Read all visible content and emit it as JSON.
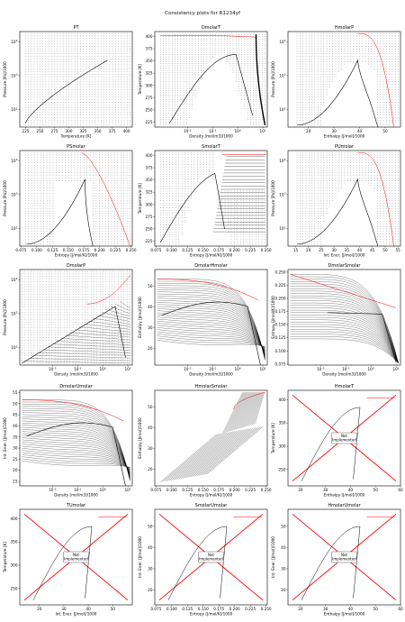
{
  "figure": {
    "title": "Consistency plots for R1234yf"
  },
  "note_label": "Not\nImplemented",
  "colors": {
    "isoline": "#000000",
    "sat": "#000000",
    "phase": "#ff0000",
    "cross": "#ff0000",
    "axis": "#000000",
    "bg": "#ffffff"
  },
  "chart_data": [
    {
      "id": "PT",
      "type": "line",
      "title": "PT",
      "xlabel": "Temperature [K]",
      "ylabel": "Pressure [Pa]/1000",
      "xlim": [
        215,
        410
      ],
      "xticks": [
        "225",
        "250",
        "275",
        "300",
        "325",
        "350",
        "375",
        "400"
      ],
      "ylog": true,
      "ylim": [
        30,
        20000
      ],
      "yticks": [
        "10^2",
        "10^3",
        "10^4"
      ],
      "kind": "pt"
    },
    {
      "id": "DmolarT",
      "type": "line",
      "title": "DmolarT",
      "xlabel": "Density [mol/m3]/1000",
      "ylabel": "Temperature [K]",
      "xlog": true,
      "xlim": [
        0.0005,
        15
      ],
      "xticks": [
        "10^-2",
        "10^-1",
        "10^0",
        "10^1"
      ],
      "ylim": [
        215,
        410
      ],
      "yticks": [
        "225",
        "250",
        "275",
        "300",
        "325",
        "350",
        "375",
        "400"
      ],
      "kind": "dt"
    },
    {
      "id": "HmolarP",
      "type": "line",
      "title": "HmolarP",
      "xlabel": "Enthalpy [J/mol]/1000",
      "ylabel": "Pressure [Pa]/1000",
      "xlim": [
        12,
        56
      ],
      "xticks": [
        "20",
        "30",
        "40",
        "50"
      ],
      "ylog": true,
      "ylim": [
        30,
        20000
      ],
      "yticks": [
        "10^2",
        "10^3",
        "10^4"
      ],
      "kind": "hp"
    },
    {
      "id": "PSmolar",
      "type": "line",
      "title": "PSmolar",
      "xlabel": "Entropy [J/mol/K]/1000",
      "ylabel": "Pressure [Pa]/1000",
      "xlim": [
        0.073,
        0.252
      ],
      "xticks": [
        "0.075",
        "0.100",
        "0.125",
        "0.150",
        "0.175",
        "0.200",
        "0.225",
        "0.250"
      ],
      "ylog": true,
      "ylim": [
        30,
        20000
      ],
      "yticks": [
        "10^2",
        "10^3",
        "10^4"
      ],
      "kind": "sp"
    },
    {
      "id": "SmolarT",
      "type": "line",
      "title": "SmolarT",
      "xlabel": "Entropy [J/mol/K]/1000",
      "ylabel": "Temperature [K]",
      "xlim": [
        0.073,
        0.252
      ],
      "xticks": [
        "0.075",
        "0.100",
        "0.125",
        "0.150",
        "0.175",
        "0.200",
        "0.225",
        "0.250"
      ],
      "ylim": [
        215,
        410
      ],
      "yticks": [
        "225",
        "250",
        "275",
        "300",
        "325",
        "350",
        "375",
        "400"
      ],
      "kind": "st"
    },
    {
      "id": "PUmolar",
      "type": "line",
      "title": "PUmolar",
      "xlabel": "Int. Ener. [J/mol]/1000",
      "ylabel": "Pressure [Pa]/1000",
      "xlim": [
        12,
        56
      ],
      "xticks": [
        "15",
        "20",
        "25",
        "30",
        "35",
        "40",
        "45",
        "50",
        "55"
      ],
      "ylog": true,
      "ylim": [
        30,
        20000
      ],
      "yticks": [
        "10^2",
        "10^3",
        "10^4"
      ],
      "kind": "up"
    },
    {
      "id": "DmolarP",
      "type": "line",
      "title": "DmolarP",
      "xlabel": "Density [mol/m3]/1000",
      "ylabel": "Pressure [Pa]/1000",
      "xlog": true,
      "xlim": [
        0.0005,
        15
      ],
      "xticks": [
        "10^-2",
        "10^-1",
        "10^0",
        "10^1"
      ],
      "ylog": true,
      "ylim": [
        30,
        20000
      ],
      "yticks": [
        "10^2",
        "10^3",
        "10^4"
      ],
      "kind": "dp"
    },
    {
      "id": "DmolarHmolar",
      "type": "line",
      "title": "DmolarHmolar",
      "xlabel": "Density [mol/m3]/1000",
      "ylabel": "Enthalpy [J/mol]/1000",
      "xlog": true,
      "xlim": [
        0.0005,
        15
      ],
      "xticks": [
        "10^-2",
        "10^-1",
        "10^0",
        "10^1"
      ],
      "ylim": [
        12,
        58
      ],
      "yticks": [
        "20",
        "30",
        "40",
        "50"
      ],
      "kind": "dh"
    },
    {
      "id": "DmolarSmolar",
      "type": "line",
      "title": "DmolarSmolar",
      "xlabel": "Density [mol/m3]/1000",
      "ylabel": "Entropy [J/mol/K]/1000",
      "xlog": true,
      "xlim": [
        0.0005,
        15
      ],
      "xticks": [
        "10^-2",
        "10^-1",
        "10^0",
        "10^1"
      ],
      "ylim": [
        0.073,
        0.255
      ],
      "yticks": [
        "0.075",
        "0.100",
        "0.125",
        "0.150",
        "0.175",
        "0.200",
        "0.225",
        "0.250"
      ],
      "kind": "ds"
    },
    {
      "id": "DmolarUmolar",
      "type": "line",
      "title": "DmolarUmolar",
      "xlabel": "Density [mol/m3]/1000",
      "ylabel": "Int. Ener. [J/mol]/1000",
      "xlog": true,
      "xlim": [
        0.0005,
        15
      ],
      "xticks": [
        "10^-2",
        "10^-1",
        "10^0",
        "10^1"
      ],
      "ylim": [
        13,
        56
      ],
      "yticks": [
        "15",
        "20",
        "25",
        "30",
        "35",
        "40",
        "45",
        "50",
        "55"
      ],
      "kind": "du"
    },
    {
      "id": "HmolarSmolar",
      "type": "line",
      "title": "HmolarSmolar",
      "xlabel": "Entropy [J/mol/K]/1000",
      "ylabel": "Enthalpy [J/mol]/1000",
      "xlim": [
        0.073,
        0.252
      ],
      "xticks": [
        "0.075",
        "0.100",
        "0.125",
        "0.150",
        "0.175",
        "0.200",
        "0.225",
        "0.250"
      ],
      "ylim": [
        12,
        58
      ],
      "yticks": [
        "20",
        "30",
        "40",
        "50"
      ],
      "kind": "sh"
    },
    {
      "id": "HmolarT",
      "type": "line",
      "title": "HmolarT",
      "xlabel": "Enthalpy [J/mol]/1000",
      "ylabel": "Temperature [K]",
      "xlim": [
        15,
        60
      ],
      "xticks": [
        "20",
        "30",
        "40",
        "50",
        "60"
      ],
      "ylim": [
        215,
        420
      ],
      "yticks": [
        "250",
        "300",
        "350",
        "400"
      ],
      "kind": "ni_ht",
      "not_implemented": true
    },
    {
      "id": "TUmolar",
      "type": "line",
      "title": "TUmolar",
      "xlabel": "Int. Ener. [J/mol]/1000",
      "ylabel": "Temperature [K]",
      "xlim": [
        12,
        58
      ],
      "xticks": [
        "20",
        "30",
        "40",
        "50"
      ],
      "ylim": [
        215,
        420
      ],
      "yticks": [
        "250",
        "300",
        "350",
        "400"
      ],
      "kind": "ni_ut",
      "not_implemented": true
    },
    {
      "id": "SmolarUmolar",
      "type": "line",
      "title": "SmolarUmolar",
      "xlabel": "Entropy [J/mol/K]/1000",
      "ylabel": "Int. Ener. [J/mol]/1000",
      "xlim": [
        0.073,
        0.252
      ],
      "xticks": [
        "0.075",
        "0.100",
        "0.125",
        "0.150",
        "0.175",
        "0.200",
        "0.225",
        "0.250"
      ],
      "ylim": [
        13,
        58
      ],
      "yticks": [
        "20",
        "30",
        "40",
        "50"
      ],
      "kind": "ni_su",
      "not_implemented": true
    },
    {
      "id": "HmolarUmolar",
      "type": "line",
      "title": "HmolarUmolar",
      "xlabel": "Enthalpy [J/mol]/1000",
      "ylabel": "Int. Ener. [J/mol]/1000",
      "xlim": [
        15,
        60
      ],
      "xticks": [
        "20",
        "30",
        "40",
        "50",
        "60"
      ],
      "ylim": [
        13,
        58
      ],
      "yticks": [
        "20",
        "30",
        "40",
        "50"
      ],
      "kind": "ni_hu",
      "not_implemented": true
    }
  ]
}
